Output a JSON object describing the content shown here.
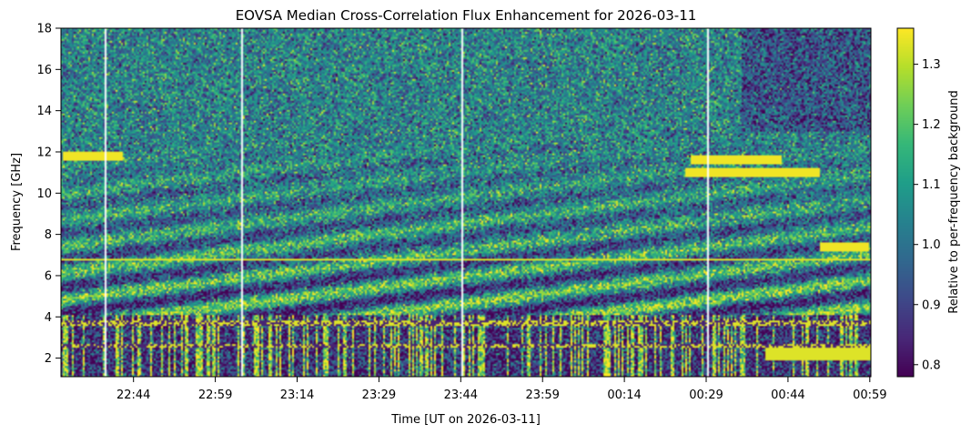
{
  "chart_data": {
    "type": "heatmap",
    "title": "EOVSA Median Cross-Correlation Flux Enhancement for 2026-03-11",
    "xlabel": "Time [UT on 2026-03-11]",
    "ylabel": "Frequency [GHz]",
    "colorbar_label": "Relative to per-frequency background",
    "colormap": "viridis",
    "colormap_stops": [
      "#440154",
      "#482878",
      "#3e4989",
      "#31688e",
      "#26828e",
      "#1f9e89",
      "#35b779",
      "#6ece58",
      "#b5de2b",
      "#fde725"
    ],
    "x_ticks": [
      "22:44",
      "22:59",
      "23:14",
      "23:29",
      "23:44",
      "23:59",
      "00:14",
      "00:29",
      "00:44",
      "00:59"
    ],
    "x_tick_minutes": [
      44,
      59,
      74,
      89,
      104,
      119,
      134,
      149,
      164,
      179
    ],
    "x_range_minutes": [
      30.7,
      179.2
    ],
    "x_reference_hour": "22:00",
    "y_ticks": [
      2,
      4,
      6,
      8,
      10,
      12,
      14,
      16,
      18
    ],
    "ylim": [
      1.1,
      18
    ],
    "clim": [
      0.78,
      1.36
    ],
    "colorbar_ticks": [
      0.8,
      0.9,
      1.0,
      1.1,
      1.2,
      1.3
    ],
    "data_gap_minutes": [
      38.8,
      63.8,
      104.0,
      149.2
    ],
    "features": [
      {
        "kind": "drifting_bands",
        "description": "diagonal bright bands rising in frequency with time"
      },
      {
        "kind": "horizontal_line",
        "freq_ghz": 6.75
      },
      {
        "kind": "rfi_band",
        "freq_ghz_range": [
          1.1,
          4.1
        ]
      },
      {
        "kind": "bright_patch",
        "time_minutes": [
          31,
          42
        ],
        "freq_ghz": 11.8
      },
      {
        "kind": "bright_patch",
        "time_minutes": [
          146,
          163
        ],
        "freq_ghz": 11.6
      },
      {
        "kind": "bright_patch",
        "time_minutes": [
          145,
          170
        ],
        "freq_ghz": 11.0
      },
      {
        "kind": "bright_patch",
        "time_minutes": [
          170,
          179
        ],
        "freq_ghz": 7.4
      }
    ]
  }
}
